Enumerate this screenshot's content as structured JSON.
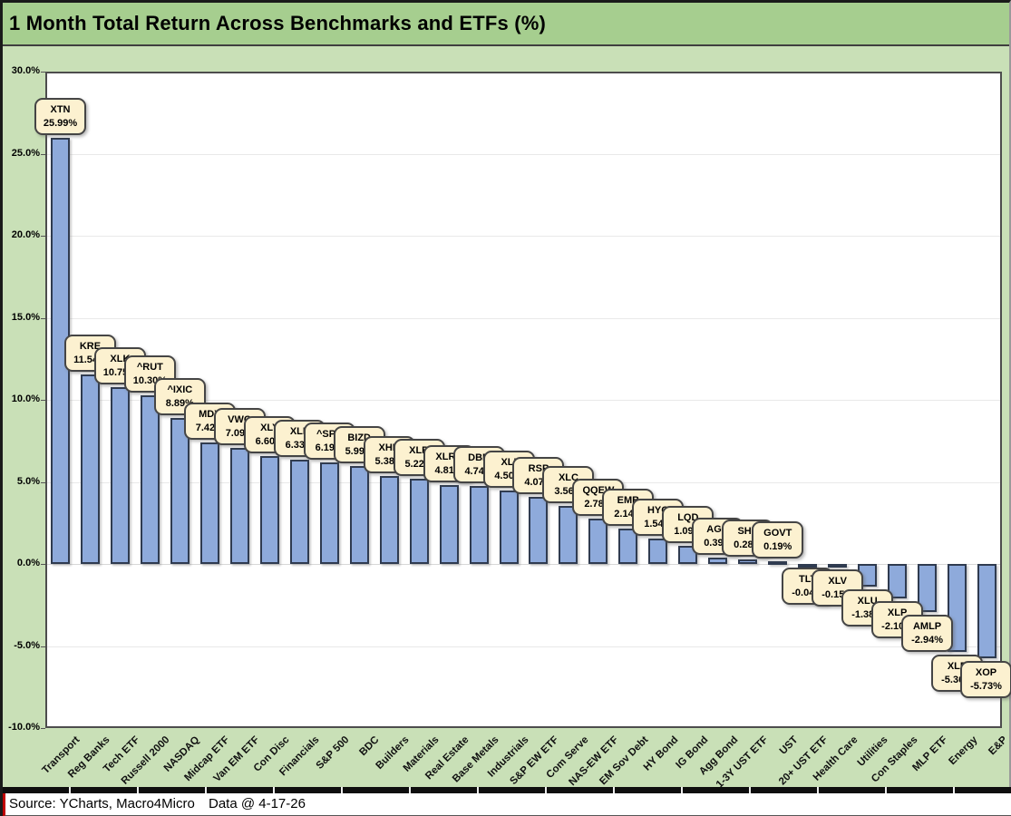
{
  "window": {
    "title": "1 Month Total Return Across Benchmarks and ETFs (%)"
  },
  "chart_data": {
    "type": "bar",
    "title": "1 Month Total Return Across Benchmarks and ETFs (%)",
    "xlabel": "",
    "ylabel": "",
    "ylim": [
      -10,
      30
    ],
    "ytick_step": 5,
    "ytick_labels": [
      "30.0%",
      "25.0%",
      "20.0%",
      "15.0%",
      "10.0%",
      "5.0%",
      "0.0%",
      "-5.0%",
      "-10.0%"
    ],
    "grid": true,
    "legend": "none",
    "bar_color": "#8eaadb",
    "categories": [
      "Transport",
      "Reg Banks",
      "Tech ETF",
      "Russell 2000",
      "NASDAQ",
      "Midcap ETF",
      "Van EM ETF",
      "Con Disc",
      "Financials",
      "S&P 500",
      "BDC",
      "Builders",
      "Materials",
      "Real Estate",
      "Base Metals",
      "Industrials",
      "S&P EW ETF",
      "Com Serve",
      "NAS-EW ETF",
      "EM Sov Debt",
      "HY Bond",
      "IG Bond",
      "Agg Bond",
      "1-3Y UST ETF",
      "UST",
      "20+ UST ETF",
      "Health Care",
      "Utilities",
      "Con Staples",
      "MLP ETF",
      "Energy",
      "E&P"
    ],
    "series": [
      {
        "name": "1 Month Total Return (%)",
        "points": [
          {
            "category": "Transport",
            "ticker": "XTN",
            "value": 25.99,
            "label": "25.99%"
          },
          {
            "category": "Reg Banks",
            "ticker": "KRE",
            "value": 11.54,
            "label": "11.54%"
          },
          {
            "category": "Tech ETF",
            "ticker": "XLK",
            "value": 10.75,
            "label": "10.75%"
          },
          {
            "category": "Russell 2000",
            "ticker": "^RUT",
            "value": 10.3,
            "label": "10.30%"
          },
          {
            "category": "NASDAQ",
            "ticker": "^IXIC",
            "value": 8.89,
            "label": "8.89%"
          },
          {
            "category": "Midcap ETF",
            "ticker": "MDY",
            "value": 7.42,
            "label": "7.42%"
          },
          {
            "category": "Van EM ETF",
            "ticker": "VWO",
            "value": 7.09,
            "label": "7.09%"
          },
          {
            "category": "Con Disc",
            "ticker": "XLY",
            "value": 6.6,
            "label": "6.60%"
          },
          {
            "category": "Financials",
            "ticker": "XLF",
            "value": 6.33,
            "label": "6.33%"
          },
          {
            "category": "S&P 500",
            "ticker": "^SPX",
            "value": 6.19,
            "label": "6.19%"
          },
          {
            "category": "BDC",
            "ticker": "BIZD",
            "value": 5.99,
            "label": "5.99%"
          },
          {
            "category": "Builders",
            "ticker": "XHB",
            "value": 5.38,
            "label": "5.38%"
          },
          {
            "category": "Materials",
            "ticker": "XLB",
            "value": 5.22,
            "label": "5.22%"
          },
          {
            "category": "Real Estate",
            "ticker": "XLRE",
            "value": 4.81,
            "label": "4.81%"
          },
          {
            "category": "Base Metals",
            "ticker": "DBB",
            "value": 4.74,
            "label": "4.74%"
          },
          {
            "category": "Industrials",
            "ticker": "XLI",
            "value": 4.5,
            "label": "4.50%"
          },
          {
            "category": "S&P EW ETF",
            "ticker": "RSP",
            "value": 4.07,
            "label": "4.07%"
          },
          {
            "category": "Com Serve",
            "ticker": "XLC",
            "value": 3.56,
            "label": "3.56%"
          },
          {
            "category": "NAS-EW ETF",
            "ticker": "QQEW",
            "value": 2.78,
            "label": "2.78%"
          },
          {
            "category": "EM Sov Debt",
            "ticker": "EMB",
            "value": 2.14,
            "label": "2.14%"
          },
          {
            "category": "HY Bond",
            "ticker": "HYG",
            "value": 1.54,
            "label": "1.54%"
          },
          {
            "category": "IG Bond",
            "ticker": "LQD",
            "value": 1.09,
            "label": "1.09%"
          },
          {
            "category": "Agg Bond",
            "ticker": "AGG",
            "value": 0.39,
            "label": "0.39%"
          },
          {
            "category": "1-3Y UST ETF",
            "ticker": "SHY",
            "value": 0.28,
            "label": "0.28%"
          },
          {
            "category": "UST",
            "ticker": "GOVT",
            "value": 0.19,
            "label": "0.19%"
          },
          {
            "category": "20+ UST ETF",
            "ticker": "TLT",
            "value": -0.04,
            "label": "-0.04%"
          },
          {
            "category": "Health Care",
            "ticker": "XLV",
            "value": -0.15,
            "label": "-0.15%"
          },
          {
            "category": "Utilities",
            "ticker": "XLU",
            "value": -1.38,
            "label": "-1.38%"
          },
          {
            "category": "Con Staples",
            "ticker": "XLP",
            "value": -2.1,
            "label": "-2.10%"
          },
          {
            "category": "MLP ETF",
            "ticker": "AMLP",
            "value": -2.94,
            "label": "-2.94%"
          },
          {
            "category": "Energy",
            "ticker": "XLE",
            "value": -5.36,
            "label": "-5.36%"
          },
          {
            "category": "E&P",
            "ticker": "XOP",
            "value": -5.73,
            "label": "-5.73%"
          }
        ]
      }
    ]
  },
  "footer": {
    "source": "Source: YCharts, Macro4Micro",
    "data_as_of": "Data @ 4-17-26"
  },
  "colors": {
    "title_band_green": "#a6ce8f",
    "body_green": "#c9e0b7",
    "bar_fill": "#8eaadb",
    "bar_border": "#2f3b50",
    "label_box_fill": "#fcf1d0",
    "label_box_border": "#454545",
    "gridline": "#e9e9e9",
    "accent_red_edge": "#c00000"
  }
}
